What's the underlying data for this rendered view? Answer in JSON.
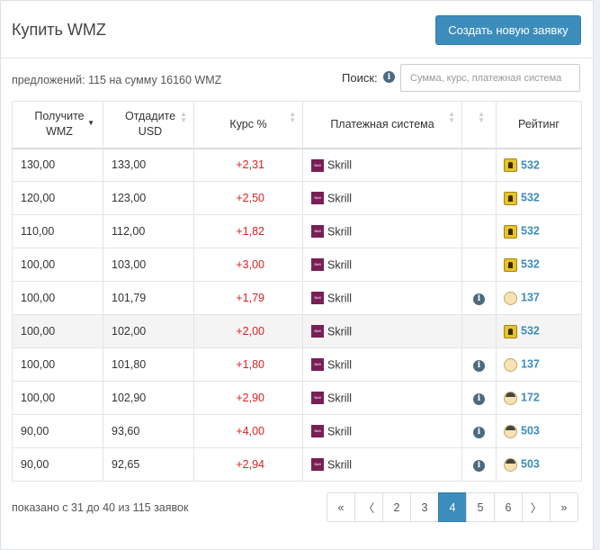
{
  "header": {
    "title": "Купить WMZ",
    "create_button": "Создать новую заявку"
  },
  "summary": "предложений: 115 на сумму 16160 WMZ",
  "search": {
    "label": "Поиск:",
    "placeholder": "Сумма, курс, платежная система"
  },
  "table": {
    "columns": [
      "Получите WMZ",
      "Отдадите USD",
      "Курс %",
      "Платежная система",
      "",
      "Рейтинг"
    ],
    "rows": [
      {
        "get": "130,00",
        "give": "133,00",
        "rate": "+2,31",
        "pay": "Skrill",
        "info": false,
        "badge": "gold",
        "rating": "532"
      },
      {
        "get": "120,00",
        "give": "123,00",
        "rate": "+2,50",
        "pay": "Skrill",
        "info": false,
        "badge": "gold",
        "rating": "532"
      },
      {
        "get": "110,00",
        "give": "112,00",
        "rate": "+1,82",
        "pay": "Skrill",
        "info": false,
        "badge": "gold",
        "rating": "532"
      },
      {
        "get": "100,00",
        "give": "103,00",
        "rate": "+3,00",
        "pay": "Skrill",
        "info": false,
        "badge": "gold",
        "rating": "532"
      },
      {
        "get": "100,00",
        "give": "101,79",
        "rate": "+1,79",
        "pay": "Skrill",
        "info": true,
        "badge": "face",
        "rating": "137"
      },
      {
        "get": "100,00",
        "give": "102,00",
        "rate": "+2,00",
        "pay": "Skrill",
        "info": false,
        "badge": "gold",
        "rating": "532"
      },
      {
        "get": "100,00",
        "give": "101,80",
        "rate": "+1,80",
        "pay": "Skrill",
        "info": true,
        "badge": "face",
        "rating": "137"
      },
      {
        "get": "100,00",
        "give": "102,90",
        "rate": "+2,90",
        "pay": "Skrill",
        "info": true,
        "badge": "face-dark",
        "rating": "172"
      },
      {
        "get": "90,00",
        "give": "93,60",
        "rate": "+4,00",
        "pay": "Skrill",
        "info": true,
        "badge": "face-dark",
        "rating": "503"
      },
      {
        "get": "90,00",
        "give": "92,65",
        "rate": "+2,94",
        "pay": "Skrill",
        "info": true,
        "badge": "face-dark",
        "rating": "503"
      }
    ]
  },
  "footer": {
    "text": "показано с 31 до 40 из 115 заявок"
  },
  "pagination": {
    "first": "«",
    "prev": "〈",
    "pages": [
      "2",
      "3",
      "4",
      "5",
      "6"
    ],
    "active": "4",
    "next": "〉",
    "last": "»"
  },
  "colors": {
    "accent": "#3c8dbc",
    "rate": "#dd2222",
    "skrill": "#7a1e56"
  }
}
